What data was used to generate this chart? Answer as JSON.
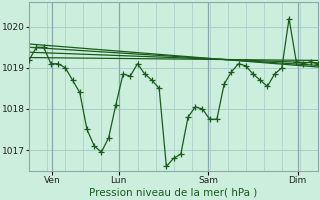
{
  "bg_color": "#cceedd",
  "grid_color": "#aacccc",
  "line_color": "#1a5c1a",
  "ylim": [
    1016.5,
    1020.6
  ],
  "ylabel_ticks": [
    1017,
    1018,
    1019,
    1020
  ],
  "xlabel": "Pression niveau de la mer( hPa )",
  "xtick_labels": [
    "Ven",
    "Lun",
    "Sam",
    "Dim"
  ],
  "xtick_positions": [
    0.08,
    0.31,
    0.62,
    0.93
  ],
  "n_points": 41,
  "main_line": [
    1019.2,
    1019.5,
    1019.5,
    1019.1,
    1019.1,
    1019.0,
    1018.7,
    1018.4,
    1017.5,
    1017.1,
    1016.95,
    1017.3,
    1018.1,
    1018.85,
    1018.8,
    1019.1,
    1018.85,
    1018.7,
    1018.5,
    1016.6,
    1016.8,
    1016.9,
    1017.8,
    1018.05,
    1018.0,
    1017.75,
    1017.75,
    1018.6,
    1018.9,
    1019.1,
    1019.05,
    1018.85,
    1018.7,
    1018.55,
    1018.85,
    1019.0,
    1020.2,
    1019.15,
    1019.1,
    1019.15,
    1019.1
  ],
  "flat_line1": [
    1019.25,
    1019.18
  ],
  "flat_line2": [
    1019.38,
    1019.12
  ],
  "flat_line3": [
    1019.5,
    1019.06
  ],
  "flat_line4": [
    1019.58,
    1019.02
  ]
}
